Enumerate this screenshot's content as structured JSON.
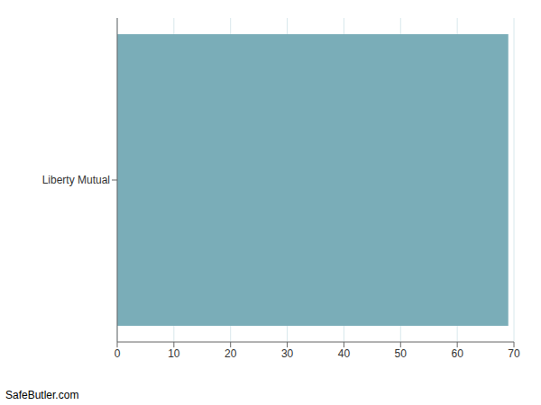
{
  "chart_data": {
    "type": "bar",
    "orientation": "horizontal",
    "categories": [
      "Liberty Mutual"
    ],
    "values": [
      69
    ],
    "color": "#7AADB8",
    "xlim": [
      0,
      70
    ],
    "xticks": [
      0,
      10,
      20,
      30,
      40,
      50,
      60,
      70
    ],
    "grid": true,
    "annotations": [
      "SafeButler.com"
    ]
  }
}
